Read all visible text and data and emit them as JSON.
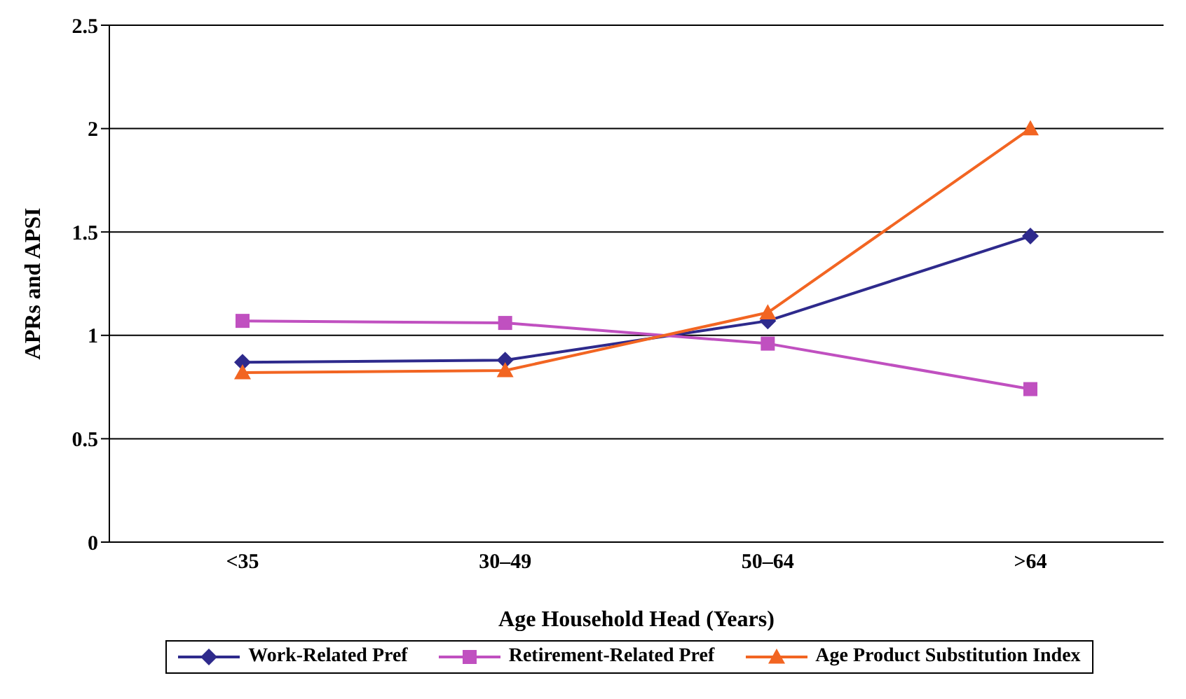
{
  "chart_data": {
    "type": "line",
    "xlabel": "Age Household Head (Years)",
    "ylabel": "APRs and APSI",
    "categories": [
      "<35",
      "30–49",
      "50–64",
      ">64"
    ],
    "series": [
      {
        "name": "Work-Related Pref",
        "color": "#2e2a8c",
        "marker": "diamond",
        "values": [
          0.87,
          0.88,
          1.07,
          1.48
        ]
      },
      {
        "name": "Retirement-Related Pref",
        "color": "#c050c0",
        "marker": "square",
        "values": [
          1.07,
          1.06,
          0.96,
          0.74
        ]
      },
      {
        "name": "Age Product Substitution Index",
        "color": "#f26522",
        "marker": "triangle",
        "values": [
          0.82,
          0.83,
          1.11,
          2.0
        ]
      }
    ],
    "ylim": [
      0,
      2.5
    ],
    "yticks": [
      0,
      0.5,
      1,
      1.5,
      2,
      2.5
    ],
    "grid": "y",
    "legend": "bottom"
  }
}
